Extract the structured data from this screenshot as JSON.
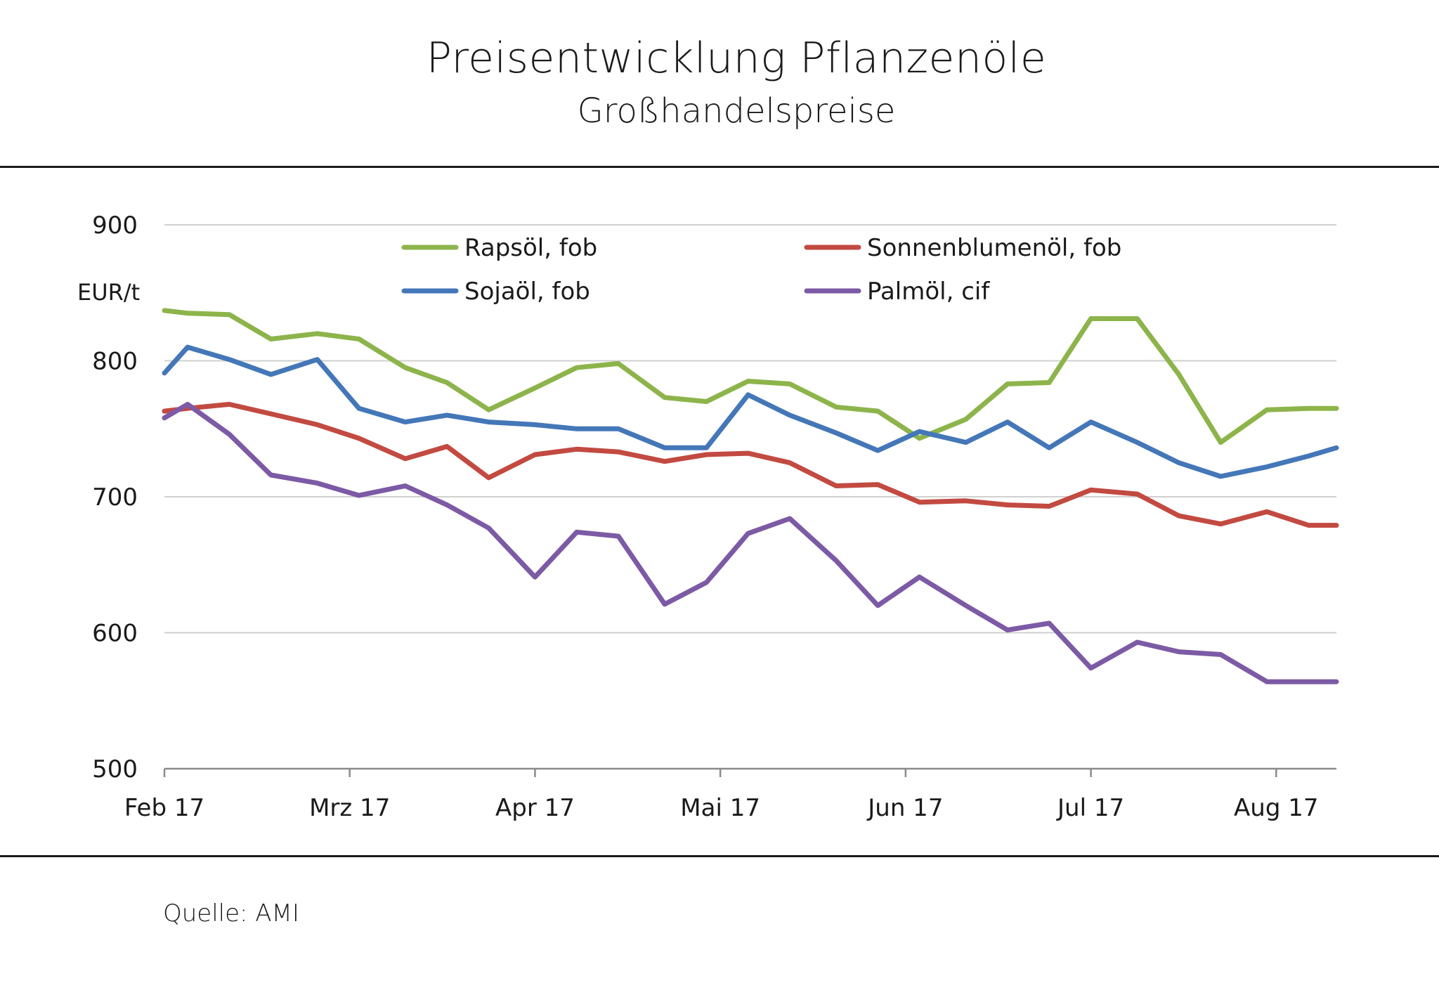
{
  "title": "Preisentwicklung Pflanzenöle",
  "subtitle": "Großhandelspreise",
  "source": "Quelle: AMI",
  "chart_data": {
    "type": "line",
    "title": "Preisentwicklung Pflanzenöle",
    "subtitle": "Großhandelspreise",
    "xlabel": "",
    "ylabel": "EUR/t",
    "ylim": [
      500,
      900
    ],
    "yticks": [
      500,
      600,
      700,
      800,
      900
    ],
    "grid": true,
    "legend": "top",
    "x_tick_labels": [
      "Feb 17",
      "Mrz 17",
      "Apr 17",
      "Mai 17",
      "Jun 17",
      "Jul 17",
      "Aug 17"
    ],
    "x_tick_positions": [
      0,
      4,
      8,
      12,
      16,
      20,
      24
    ],
    "x_range": [
      0,
      25.3
    ],
    "series": [
      {
        "name": "Rapsöl, fob",
        "color": "#8DB44B",
        "x": [
          0,
          0.5,
          1.4,
          2.3,
          3.3,
          4.2,
          5.2,
          6.1,
          7.0,
          8.0,
          8.9,
          9.8,
          10.8,
          11.7,
          12.6,
          13.5,
          14.5,
          15.4,
          16.3,
          17.3,
          18.2,
          19.1,
          20.0,
          21.0,
          21.9,
          22.8,
          23.8,
          24.7,
          25.3
        ],
        "values": [
          837,
          835,
          834,
          816,
          820,
          816,
          795,
          784,
          764,
          780,
          795,
          798,
          773,
          770,
          785,
          783,
          766,
          763,
          743,
          757,
          783,
          784,
          831,
          831,
          790,
          740,
          764,
          765,
          765
        ]
      },
      {
        "name": "Sonnenblumenöl, fob",
        "color": "#C24A41",
        "x": [
          0,
          0.5,
          1.4,
          2.3,
          3.3,
          4.2,
          5.2,
          6.1,
          7.0,
          8.0,
          8.9,
          9.8,
          10.8,
          11.7,
          12.6,
          13.5,
          14.5,
          15.4,
          16.3,
          17.3,
          18.2,
          19.1,
          20.0,
          21.0,
          21.9,
          22.8,
          23.8,
          24.7,
          25.3
        ],
        "values": [
          763,
          765,
          768,
          761,
          753,
          743,
          728,
          737,
          714,
          731,
          735,
          733,
          726,
          731,
          732,
          725,
          708,
          709,
          696,
          697,
          694,
          693,
          705,
          702,
          686,
          680,
          689,
          679,
          679
        ]
      },
      {
        "name": "Sojaöl, fob",
        "color": "#4477B8",
        "x": [
          0,
          0.5,
          1.4,
          2.3,
          3.3,
          4.2,
          5.2,
          6.1,
          7.0,
          8.0,
          8.9,
          9.8,
          10.8,
          11.7,
          12.6,
          13.5,
          14.5,
          15.4,
          16.3,
          17.3,
          18.2,
          19.1,
          20.0,
          21.0,
          21.9,
          22.8,
          23.8,
          24.7,
          25.3
        ],
        "values": [
          791,
          810,
          801,
          790,
          801,
          765,
          755,
          760,
          755,
          753,
          750,
          750,
          736,
          736,
          775,
          760,
          747,
          734,
          748,
          740,
          755,
          736,
          755,
          740,
          725,
          715,
          722,
          730,
          736
        ]
      },
      {
        "name": "Palmöl, cif",
        "color": "#7C5AA5",
        "x": [
          0,
          0.5,
          1.4,
          2.3,
          3.3,
          4.2,
          5.2,
          6.1,
          7.0,
          8.0,
          8.9,
          9.8,
          10.8,
          11.7,
          12.6,
          13.5,
          14.5,
          15.4,
          16.3,
          17.3,
          18.2,
          19.1,
          20.0,
          21.0,
          21.9,
          22.8,
          23.8,
          24.7,
          25.3
        ],
        "values": [
          758,
          768,
          746,
          716,
          710,
          701,
          708,
          694,
          677,
          641,
          674,
          671,
          621,
          637,
          673,
          684,
          653,
          620,
          641,
          620,
          602,
          607,
          574,
          593,
          586,
          584,
          564,
          564,
          564
        ]
      }
    ]
  }
}
